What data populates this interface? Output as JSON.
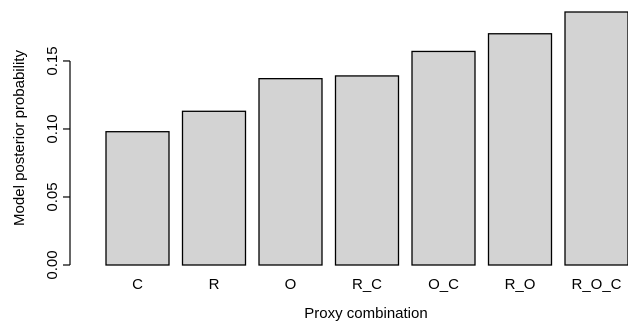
{
  "chart_data": {
    "type": "bar",
    "categories": [
      "C",
      "R",
      "O",
      "R_C",
      "O_C",
      "R_O",
      "R_O_C"
    ],
    "values": [
      0.098,
      0.113,
      0.137,
      0.139,
      0.157,
      0.17,
      0.186
    ],
    "xlabel": "Proxy combination",
    "ylabel": "Model posterior probability",
    "ylim": [
      0,
      0.186
    ],
    "yticks": [
      0.0,
      0.05,
      0.1,
      0.15
    ],
    "ytick_labels": [
      "0.00",
      "0.05",
      "0.10",
      "0.15"
    ],
    "bar_color": "#d3d3d3",
    "grid": false,
    "legend": "none"
  }
}
